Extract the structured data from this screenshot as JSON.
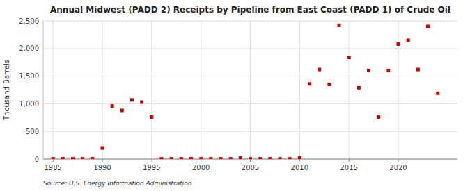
{
  "chart_data": {
    "type": "scatter",
    "title": "Annual Midwest (PADD 2) Receipts by Pipeline from East Coast (PADD 1) of Crude Oil",
    "ylabel": "Thousand Barrels",
    "source": "Source: U.S. Energy Information Administration",
    "color": "#cc0000",
    "marker": "square",
    "grid": true,
    "xlim": [
      1984,
      2026
    ],
    "ylim": [
      0,
      2500
    ],
    "xticks": [
      1985,
      1990,
      1995,
      2000,
      2005,
      2010,
      2015,
      2020
    ],
    "yticks": [
      0,
      500,
      {
        "value": 1000,
        "label": "1,000"
      },
      {
        "value": 1500,
        "label": "1,500"
      },
      {
        "value": 2000,
        "label": "2,000"
      },
      {
        "value": 2500,
        "label": "2,500"
      }
    ],
    "x": [
      1985,
      1986,
      1987,
      1988,
      1989,
      1990,
      1991,
      1992,
      1993,
      1994,
      1995,
      1996,
      1997,
      1998,
      1999,
      2000,
      2001,
      2002,
      2003,
      2004,
      2005,
      2006,
      2007,
      2008,
      2009,
      2010,
      2011,
      2012,
      2013,
      2014,
      2015,
      2016,
      2017,
      2018,
      2019,
      2020,
      2021,
      2022,
      2023,
      2024
    ],
    "values": [
      5,
      5,
      5,
      5,
      5,
      200,
      960,
      880,
      1070,
      1030,
      760,
      5,
      5,
      5,
      5,
      5,
      5,
      5,
      5,
      20,
      5,
      5,
      5,
      5,
      5,
      20,
      1360,
      1620,
      1350,
      2420,
      1840,
      1290,
      1600,
      760,
      1600,
      2080,
      2150,
      1620,
      2400,
      1190
    ]
  }
}
